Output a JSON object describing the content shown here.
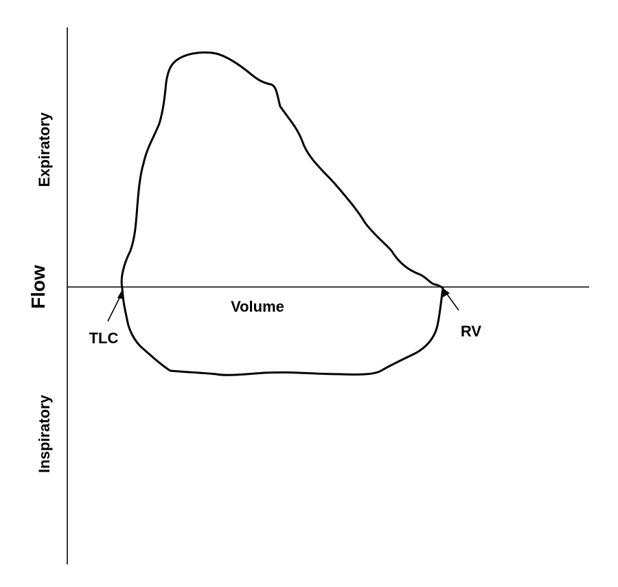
{
  "labels": {
    "flow": "Flow",
    "expiratory": "Expiratory",
    "inspiratory": "Inspiratory",
    "volume": "Volume",
    "tlc": "TLC",
    "rv": "RV"
  },
  "colors": {
    "line": "#000000",
    "background": "#ffffff"
  }
}
